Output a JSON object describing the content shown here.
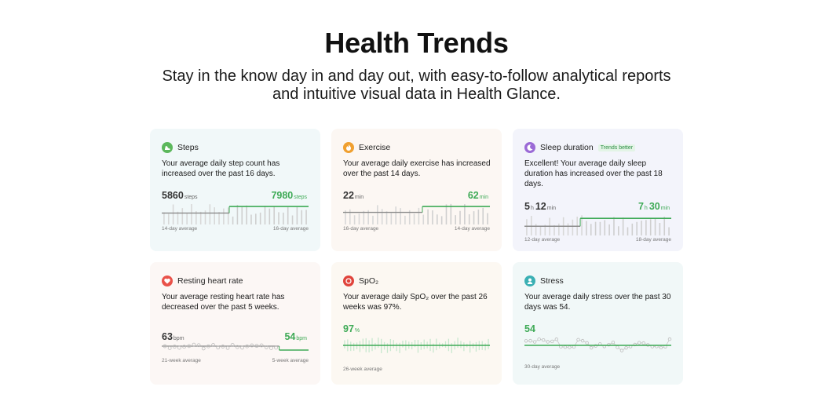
{
  "hero": {
    "title": "Health Trends",
    "subtitle": "Stay in the know day in and day out, with easy-to-follow analytical reports and intuitive visual data in Health Glance."
  },
  "colors": {
    "accent_green": "#3eaa56",
    "gray_line": "#8c8c8c"
  },
  "cards": {
    "steps": {
      "icon": "shoe-icon",
      "title": "Steps",
      "desc": "Your average daily step count has increased over the past 16 days.",
      "left_value": "5860",
      "left_unit": "steps",
      "right_value": "7980",
      "right_unit": "steps",
      "left_caption": "14-day average",
      "right_caption": "16-day average",
      "bg": "#f1f8f9",
      "icon_color": "#5cb85c"
    },
    "exercise": {
      "icon": "flame-icon",
      "title": "Exercise",
      "desc": "Your average daily exercise has increased over the past 14 days.",
      "left_value": "22",
      "left_unit": "min",
      "right_value": "62",
      "right_unit": "min",
      "left_caption": "16-day average",
      "right_caption": "14-day average",
      "bg": "#fcf7f3",
      "icon_color": "#f0a030"
    },
    "sleep": {
      "icon": "moon-icon",
      "title": "Sleep duration",
      "tag": "Trends better",
      "desc": "Excellent!  Your average daily sleep duration has increased over the past 18 days.",
      "left_h": "5",
      "left_h_unit": "h",
      "left_m": "12",
      "left_m_unit": "min",
      "right_h": "7",
      "right_h_unit": "h",
      "right_m": "30",
      "right_m_unit": "min",
      "left_caption": "12-day average",
      "right_caption": "18-day average",
      "bg": "#f3f4fb",
      "icon_color": "#9b6ad6"
    },
    "heart": {
      "icon": "heart-icon",
      "title": "Resting heart rate",
      "desc": "Your average resting heart rate has decreased over the past 5 weeks.",
      "left_value": "63",
      "left_unit": "bpm",
      "right_value": "54",
      "right_unit": "bpm",
      "left_caption": "21-week average",
      "right_caption": "5-week average",
      "bg": "#fcf7f5",
      "icon_color": "#e9524a"
    },
    "spo2": {
      "icon": "blood-drop-icon",
      "title": "SpO₂",
      "desc": "Your average daily SpO₂ over the past 26 weeks was 97%.",
      "value": "97",
      "unit": "%",
      "caption": "26-week average",
      "bg": "#fcf8f2",
      "icon_color": "#e0443c"
    },
    "stress": {
      "icon": "face-icon",
      "title": "Stress",
      "desc": "Your average daily stress over the past 30 days was 54.",
      "value": "54",
      "caption": "30-day average",
      "bg": "#f1f8f8",
      "icon_color": "#3bb0b4"
    }
  }
}
